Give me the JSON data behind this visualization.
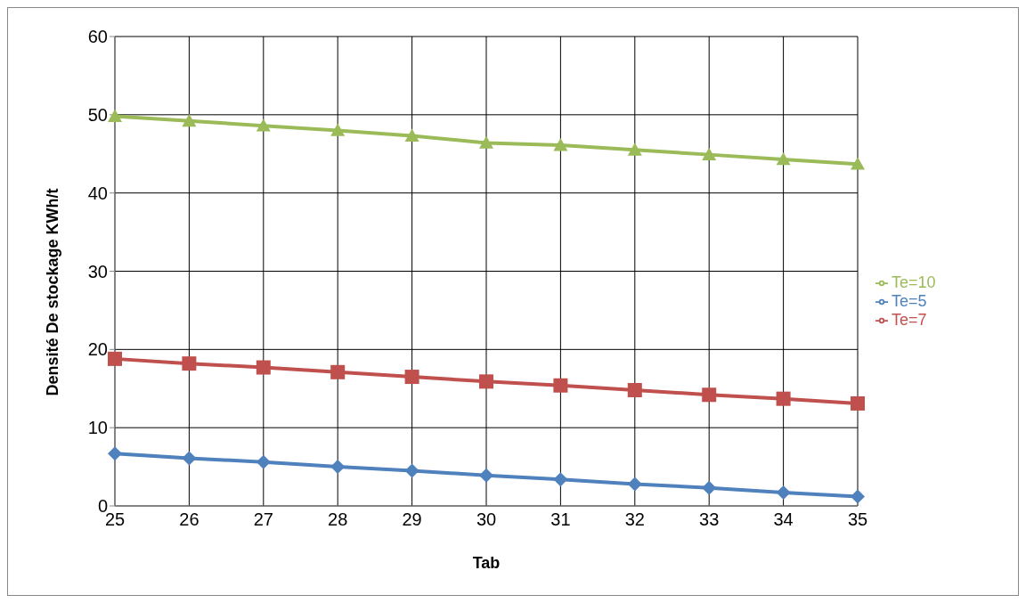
{
  "chart_data": {
    "type": "line",
    "xlabel": "Tab",
    "ylabel": "Densité De stockage KWh/t",
    "categories": [
      "25",
      "26",
      "27",
      "28",
      "29",
      "30",
      "31",
      "32",
      "33",
      "34",
      "35"
    ],
    "series": [
      {
        "name": "Te=5",
        "color": "#4f81bd",
        "marker": "diamond",
        "values": [
          6.7,
          6.1,
          5.6,
          5.0,
          4.5,
          3.9,
          3.4,
          2.8,
          2.3,
          1.7,
          1.2
        ]
      },
      {
        "name": "Te=7",
        "color": "#c0504d",
        "marker": "square",
        "values": [
          18.8,
          18.2,
          17.7,
          17.1,
          16.5,
          15.9,
          15.4,
          14.8,
          14.2,
          13.7,
          13.1
        ]
      },
      {
        "name": "Te=10",
        "color": "#9bbb59",
        "marker": "triangle",
        "values": [
          49.8,
          49.2,
          48.6,
          48.0,
          47.3,
          46.4,
          46.1,
          45.5,
          44.9,
          44.3,
          43.7
        ]
      }
    ],
    "ylim": [
      0,
      60
    ],
    "yticks": [
      0,
      10,
      20,
      30,
      40,
      50,
      60
    ],
    "grid": true,
    "legend": "right"
  }
}
